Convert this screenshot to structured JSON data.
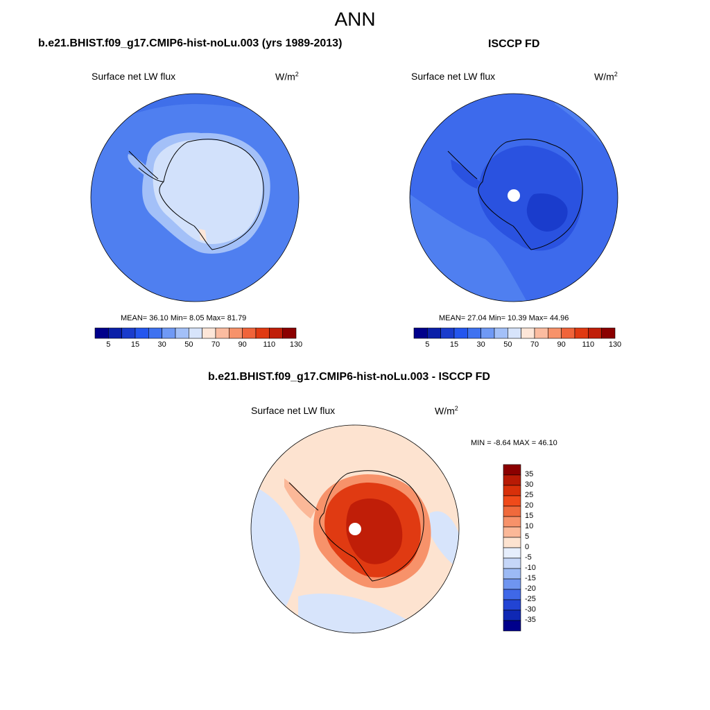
{
  "title": "ANN",
  "panels": {
    "model": {
      "title": "b.e21.BHIST.f09_g17.CMIP6-hist-noLu.003 (yrs 1989-2013)",
      "variable": "Surface net LW flux",
      "units": "W/m",
      "units_sup": "2",
      "stats": "MEAN=  36.10  Min=   8.05  Max=  81.79"
    },
    "obs": {
      "title": "ISCCP FD",
      "variable": "Surface net LW flux",
      "units": "W/m",
      "units_sup": "2",
      "stats": "MEAN=  27.04  Min=  10.39  Max=  44.96"
    },
    "diff": {
      "title": "b.e21.BHIST.f09_g17.CMIP6-hist-noLu.003 - ISCCP FD",
      "variable": "Surface net LW flux",
      "units": "W/m",
      "units_sup": "2",
      "stats": "MIN =  -8.64 MAX =  46.10"
    }
  },
  "colorbar_abs": {
    "labels": [
      "5",
      "15",
      "30",
      "50",
      "70",
      "90",
      "110",
      "130"
    ],
    "colors": [
      "#00008b",
      "#0a1fa8",
      "#1a3ccc",
      "#2456ee",
      "#3f72f0",
      "#6f99f5",
      "#a3c0f8",
      "#d7e4fb",
      "#fde6d8",
      "#fbbca0",
      "#f7926a",
      "#f0643a",
      "#e03a12",
      "#c01e08",
      "#8b0000"
    ]
  },
  "colorbar_diff": {
    "labels": [
      "35",
      "30",
      "25",
      "20",
      "15",
      "10",
      "5",
      "0",
      "-5",
      "-10",
      "-15",
      "-20",
      "-25",
      "-30",
      "-35"
    ],
    "colors": [
      "#8b0000",
      "#b81a05",
      "#d8300a",
      "#f04a1a",
      "#f06a3c",
      "#f7926a",
      "#fbb898",
      "#fde3d0",
      "#e6eefc",
      "#c5d6f8",
      "#9cbaf5",
      "#6f95f0",
      "#3f68e8",
      "#2244d4",
      "#0f28b4",
      "#00008b"
    ]
  },
  "colors": {
    "model_ocean": "#4f7ff0",
    "model_ocean_north": "#3f6fea",
    "model_land": "#d2e1fb",
    "model_shelf": "#a3c0f8",
    "obs_ocean": "#3d6aec",
    "obs_land": "#2a52e0",
    "diff_bg": "#fde3d0",
    "diff_land": "#e03a12",
    "diff_core": "#c01e08",
    "diff_blue": "#d7e4fb",
    "coastline": "#000000"
  }
}
